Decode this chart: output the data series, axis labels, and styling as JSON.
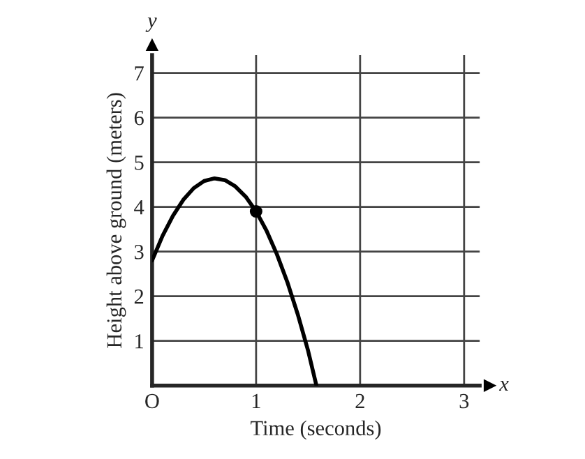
{
  "chart_data": {
    "type": "line",
    "xlabel": "Time (seconds)",
    "ylabel": "Height above ground (meters)",
    "annotations": [
      "x",
      "y"
    ],
    "series": [
      {
        "color": "#000000",
        "marker": "none",
        "x": [
          0,
          0.1,
          0.2,
          0.3,
          0.4,
          0.5,
          0.6,
          0.7,
          0.8,
          0.9,
          1.0,
          1.1,
          1.2,
          1.3,
          1.4,
          1.5,
          1.58
        ],
        "values": [
          2.8,
          3.35,
          3.8,
          4.16,
          4.42,
          4.58,
          4.64,
          4.6,
          4.46,
          4.23,
          3.9,
          3.47,
          2.94,
          2.32,
          1.6,
          0.78,
          0
        ]
      },
      {
        "type": "scatter",
        "color": "#000000",
        "marker": "circle",
        "x": [
          1
        ],
        "values": [
          3.9
        ]
      }
    ],
    "xlim": [
      0,
      3.15
    ],
    "ylim": [
      0,
      7.4
    ],
    "xticks": [
      {
        "value": 0,
        "label": "O"
      },
      1,
      2,
      3
    ],
    "yticks": [
      {
        "value": 0,
        "label": null
      },
      1,
      2,
      3,
      4,
      5,
      6,
      7
    ],
    "grid": true
  }
}
